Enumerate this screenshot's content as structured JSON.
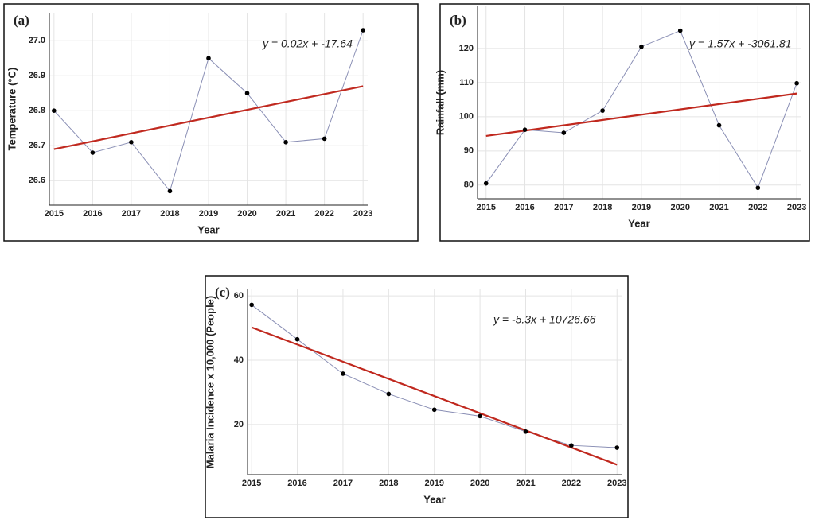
{
  "chart_data": [
    {
      "type": "line",
      "panel_label": "(a)",
      "x_label": "Year",
      "y_label": "Temperature (°C)",
      "equation": "y = 0.02x + -17.64",
      "x": [
        2015,
        2016,
        2017,
        2018,
        2019,
        2020,
        2021,
        2022,
        2023
      ],
      "values": [
        26.8,
        26.68,
        26.71,
        26.57,
        26.95,
        26.85,
        26.71,
        26.72,
        27.03
      ],
      "color": "#8a8fb5",
      "marker_color": "#000000",
      "trend": {
        "x": [
          2015,
          2023
        ],
        "values": [
          26.69,
          26.87
        ],
        "color": "#c0281e"
      },
      "xlim": [
        2014.88,
        2023.12
      ],
      "xticks": [
        2015,
        2016,
        2017,
        2018,
        2019,
        2020,
        2021,
        2022,
        2023
      ],
      "ylim": [
        26.53,
        27.08
      ],
      "yticks": [
        26.6,
        26.7,
        26.8,
        26.9,
        {
          "value": 27,
          "label": "27.0"
        }
      ],
      "grid": true
    },
    {
      "type": "line",
      "panel_label": "(b)",
      "x_label": "Year",
      "y_label": "Rainfall (mm)",
      "equation": "y = 1.57x + -3061.81",
      "x": [
        2015,
        2016,
        2017,
        2018,
        2019,
        2020,
        2021,
        2022,
        2023
      ],
      "values": [
        80.5,
        96.2,
        95.3,
        101.8,
        120.5,
        125.2,
        97.5,
        79.2,
        109.8
      ],
      "color": "#8a8fb5",
      "marker_color": "#000000",
      "trend": {
        "x": [
          2015,
          2023
        ],
        "values": [
          94.4,
          106.8
        ],
        "color": "#c0281e"
      },
      "xlim": [
        2014.78,
        2023.1
      ],
      "xticks": [
        2015,
        2016,
        2017,
        2018,
        2019,
        2020,
        2021,
        2022,
        2023
      ],
      "ylim": [
        76,
        132.3
      ],
      "yticks": [
        80,
        90,
        100,
        110,
        120
      ],
      "grid": true
    },
    {
      "type": "line",
      "panel_label": "(c)",
      "x_label": "Year",
      "y_label": "Malaria Incidence x 10,000 (People)",
      "equation": "y = -5.3x + 10726.66",
      "x": [
        2015,
        2016,
        2017,
        2018,
        2019,
        2020,
        2021,
        2022,
        2023
      ],
      "values": [
        57.2,
        46.5,
        35.8,
        29.5,
        24.6,
        22.6,
        17.8,
        13.5,
        12.8
      ],
      "color": "#8a8fb5",
      "marker_color": "#000000",
      "trend": {
        "x": [
          2015,
          2023
        ],
        "values": [
          50.2,
          7.5
        ],
        "color": "#c0281e"
      },
      "xlim": [
        2014.91,
        2023.1
      ],
      "xticks": [
        2015,
        2016,
        2017,
        2018,
        2019,
        2020,
        2021,
        2022,
        2023
      ],
      "ylim": [
        4.4,
        62
      ],
      "yticks": [
        20,
        40,
        60
      ],
      "grid": true
    }
  ]
}
